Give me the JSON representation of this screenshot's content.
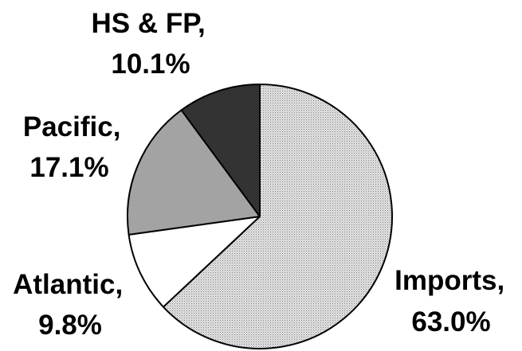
{
  "chart_data": {
    "type": "pie",
    "title": "",
    "start_angle_deg": 0,
    "direction": "clockwise",
    "legend": "none",
    "slices": [
      {
        "name": "Imports",
        "value": 63.0,
        "label_name": "Imports,",
        "label_value": "63.0%",
        "fill": "pattern-dots",
        "color": "#c8c8c8"
      },
      {
        "name": "Atlantic",
        "value": 9.8,
        "label_name": "Atlantic,",
        "label_value": "9.8%",
        "fill": "solid",
        "color": "#ffffff"
      },
      {
        "name": "Pacific",
        "value": 17.1,
        "label_name": "Pacific,",
        "label_value": "17.1%",
        "fill": "solid",
        "color": "#a3a3a3"
      },
      {
        "name": "HS & FP",
        "value": 10.1,
        "label_name": "HS & FP,",
        "label_value": "10.1%",
        "fill": "solid",
        "color": "#333333"
      }
    ]
  }
}
